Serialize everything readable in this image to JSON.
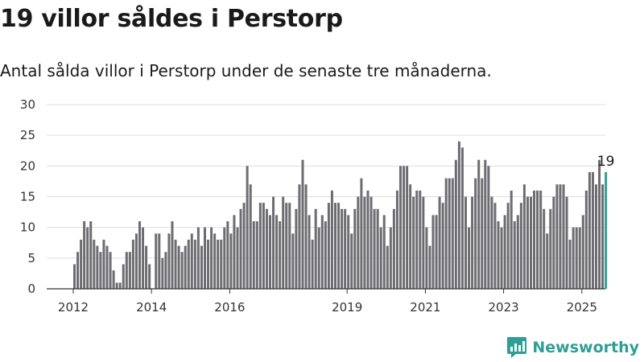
{
  "page": {
    "title": "19 villor såldes i Perstorp",
    "subtitle": "Antal sålda villor i Perstorp under de senaste tre månaderna.",
    "brand": "Newsworthy"
  },
  "colors": {
    "bar": "#6d6c71",
    "highlight": "#2f9e95",
    "grid": "#dddddd",
    "axis": "#333333"
  },
  "chart_data": {
    "type": "bar",
    "title": "",
    "xlabel": "",
    "ylabel": "",
    "ylim": [
      0,
      30
    ],
    "y_ticks": [
      0,
      5,
      10,
      15,
      20,
      25,
      30
    ],
    "grid": true,
    "x_tick_labels": [
      "2012",
      "2014",
      "2016",
      "2019",
      "2021",
      "2023",
      "2025"
    ],
    "start_year": 2012,
    "highlight_last": true,
    "last_value_label": "19",
    "values": [
      4,
      6,
      8,
      11,
      10,
      11,
      8,
      7,
      6,
      8,
      7,
      6,
      3,
      1,
      1,
      4,
      6,
      6,
      8,
      9,
      11,
      10,
      7,
      4,
      0,
      9,
      9,
      5,
      6,
      9,
      11,
      8,
      7,
      6,
      7,
      8,
      9,
      8,
      10,
      7,
      10,
      8,
      10,
      9,
      8,
      8,
      10,
      11,
      9,
      12,
      10,
      13,
      14,
      20,
      17,
      11,
      11,
      14,
      14,
      13,
      12,
      15,
      12,
      11,
      15,
      14,
      14,
      9,
      13,
      17,
      21,
      17,
      12,
      8,
      13,
      10,
      12,
      11,
      14,
      16,
      14,
      14,
      13,
      13,
      12,
      9,
      13,
      15,
      18,
      15,
      16,
      15,
      13,
      13,
      10,
      12,
      7,
      10,
      13,
      16,
      20,
      20,
      20,
      17,
      15,
      16,
      16,
      15,
      10,
      7,
      12,
      12,
      15,
      14,
      18,
      18,
      18,
      21,
      24,
      23,
      15,
      10,
      15,
      18,
      21,
      18,
      21,
      20,
      15,
      14,
      11,
      10,
      12,
      14,
      16,
      11,
      12,
      14,
      17,
      15,
      15,
      16,
      16,
      16,
      13,
      9,
      13,
      15,
      17,
      17,
      17,
      15,
      8,
      10,
      10,
      10,
      12,
      16,
      19,
      19,
      17,
      21,
      17,
      19
    ]
  }
}
